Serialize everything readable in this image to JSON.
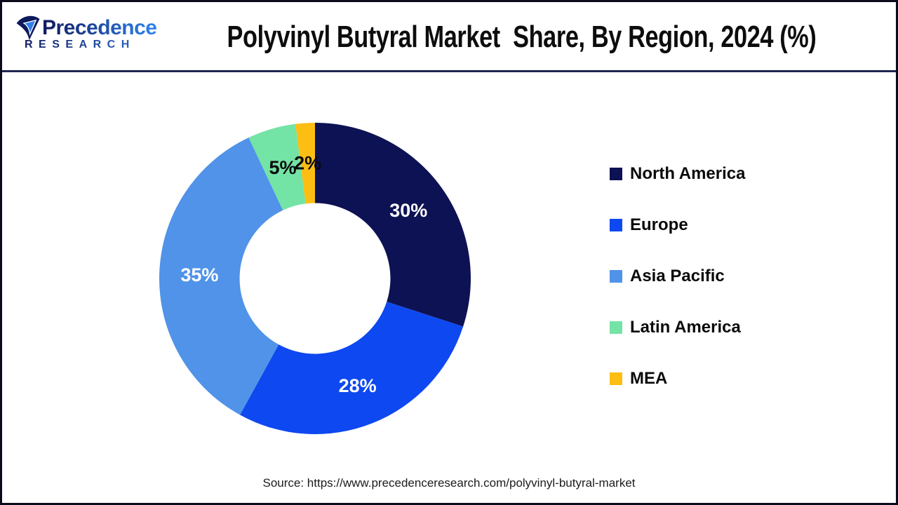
{
  "page": {
    "background": "#ffffff",
    "border_color": "#0b0b1c",
    "divider_color": "#20264f"
  },
  "header": {
    "logo": {
      "brand": "Precedence",
      "subbrand": "RESEARCH",
      "gradient_start": "#121c63",
      "gradient_end": "#2e7fe8"
    },
    "title": "Polyvinyl Butyral Market  Share, By Region, 2024 (%)"
  },
  "chart_data": {
    "type": "pie",
    "subtype": "donut",
    "title": "Polyvinyl Butyral Market Share, By Region, 2024 (%)",
    "categories": [
      "North America",
      "Europe",
      "Asia Pacific",
      "Latin America",
      "MEA"
    ],
    "values": [
      30,
      28,
      35,
      5,
      2
    ],
    "unit": "%",
    "slice_labels": [
      "30%",
      "28%",
      "35%",
      "5%",
      "2%"
    ],
    "colors": [
      "#0d1254",
      "#0e48f0",
      "#5093e8",
      "#74e3a6",
      "#fcbe13"
    ],
    "label_colors": [
      "#ffffff",
      "#ffffff",
      "#ffffff",
      "#0a0a0a",
      "#0a0a0a"
    ],
    "start_angle_deg": 0,
    "direction": "clockwise",
    "donut_hole_ratio": 0.484,
    "legend_position": "right",
    "grid": false
  },
  "footer": {
    "source": "Source: https://www.precedenceresearch.com/polyvinyl-butyral-market"
  }
}
